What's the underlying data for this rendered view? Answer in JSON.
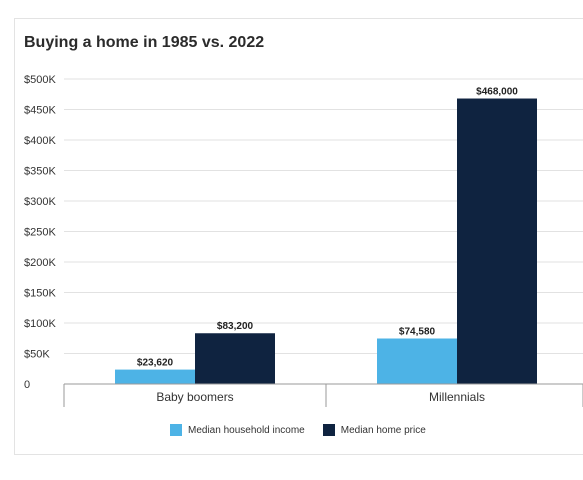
{
  "chart_data": {
    "type": "bar",
    "title": "Buying a home in 1985 vs. 2022",
    "xlabel": "",
    "ylabel": "",
    "categories": [
      "Baby boomers",
      "Millennials"
    ],
    "series": [
      {
        "name": "Median household income",
        "values": [
          23620,
          74580
        ],
        "labels": [
          "$23,620",
          "$74,580"
        ],
        "color": "#4db3e6"
      },
      {
        "name": "Median home price",
        "values": [
          83200,
          468000
        ],
        "labels": [
          "$83,200",
          "$468,000"
        ],
        "color": "#0f2340"
      }
    ],
    "ylim": [
      0,
      500000
    ],
    "yticks": [
      0,
      50000,
      100000,
      150000,
      200000,
      250000,
      300000,
      350000,
      400000,
      450000,
      500000
    ],
    "ytick_labels": [
      "0",
      "$50K",
      "$100K",
      "$150K",
      "$200K",
      "$250K",
      "$300K",
      "$350K",
      "$400K",
      "$450K",
      "$500K"
    ],
    "grid": true,
    "legend_position": "bottom"
  }
}
